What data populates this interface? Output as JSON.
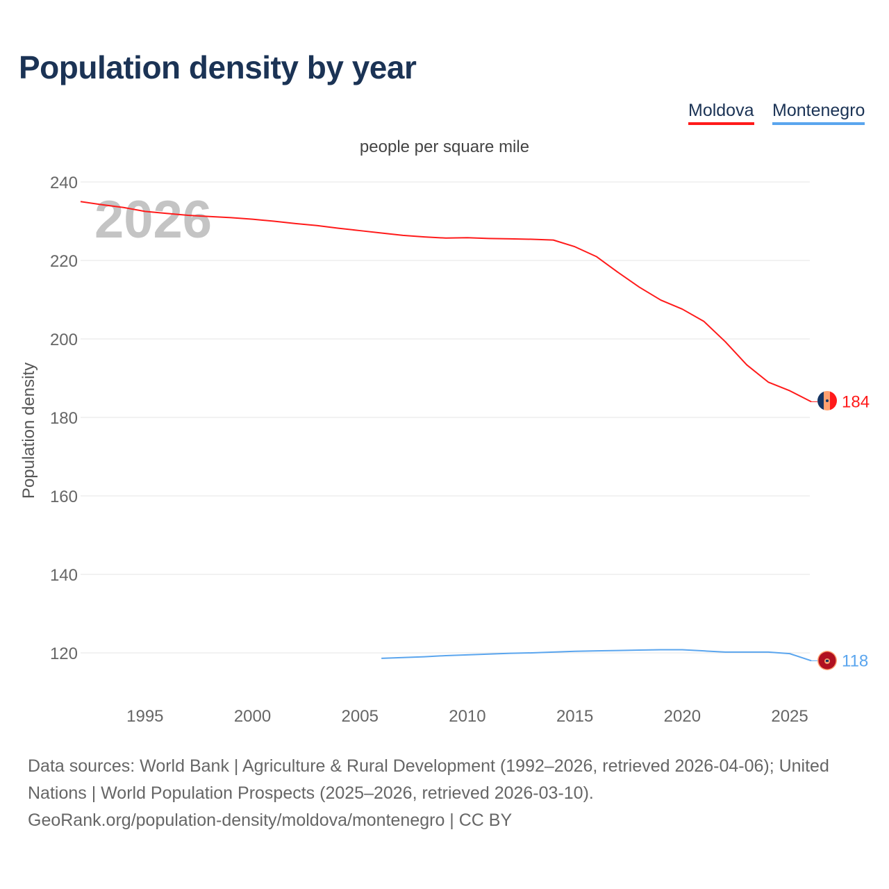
{
  "title": "Population density by year",
  "legend": [
    {
      "name": "Moldova",
      "color": "#ff1a1a"
    },
    {
      "name": "Montenegro",
      "color": "#5aa5ee"
    }
  ],
  "footer": {
    "sources": "Data sources: World Bank | Agriculture & Rural Development (1992–2026, retrieved 2026-04-06); United Nations | World Population Prospects (2025–2026, retrieved 2026-03-10).",
    "credit": "GeoRank.org/population-density/moldova/montenegro | CC BY"
  },
  "chart_data": {
    "type": "line",
    "title": "Population density by year",
    "subtitle": "people per square mile",
    "xlabel": "",
    "ylabel": "Population density",
    "year_watermark": "2026",
    "xlim": [
      1992,
      2026
    ],
    "ylim": [
      110,
      240
    ],
    "xticks": [
      1995,
      2000,
      2005,
      2010,
      2015,
      2020,
      2025
    ],
    "yticks": [
      120,
      140,
      160,
      180,
      200,
      220,
      240
    ],
    "grid": true,
    "legend_position": "top-right",
    "series": [
      {
        "name": "Moldova",
        "color": "#ff1a1a",
        "end_label": "184",
        "x": [
          1992,
          1993,
          1994,
          1995,
          1996,
          1997,
          1998,
          1999,
          2000,
          2001,
          2002,
          2003,
          2004,
          2005,
          2006,
          2007,
          2008,
          2009,
          2010,
          2011,
          2012,
          2013,
          2014,
          2015,
          2016,
          2017,
          2018,
          2019,
          2020,
          2021,
          2022,
          2023,
          2024,
          2025,
          2026
        ],
        "y": [
          235.0,
          234.2,
          233.5,
          232.5,
          232.0,
          231.5,
          231.2,
          230.9,
          230.5,
          230.0,
          229.4,
          228.9,
          228.2,
          227.6,
          227.0,
          226.4,
          226.0,
          225.7,
          225.8,
          225.6,
          225.5,
          225.4,
          225.2,
          223.5,
          221.0,
          217.0,
          213.2,
          209.9,
          207.6,
          204.5,
          199.3,
          193.4,
          189.0,
          186.8,
          184.0
        ]
      },
      {
        "name": "Montenegro",
        "color": "#5aa5ee",
        "end_label": "118",
        "x": [
          2006,
          2007,
          2008,
          2009,
          2010,
          2011,
          2012,
          2013,
          2014,
          2015,
          2016,
          2017,
          2018,
          2019,
          2020,
          2021,
          2022,
          2023,
          2024,
          2025,
          2026
        ],
        "y": [
          118.6,
          118.8,
          119.0,
          119.3,
          119.5,
          119.7,
          119.9,
          120.0,
          120.2,
          120.4,
          120.5,
          120.6,
          120.7,
          120.8,
          120.8,
          120.5,
          120.2,
          120.2,
          120.2,
          119.8,
          118.0
        ]
      }
    ]
  }
}
